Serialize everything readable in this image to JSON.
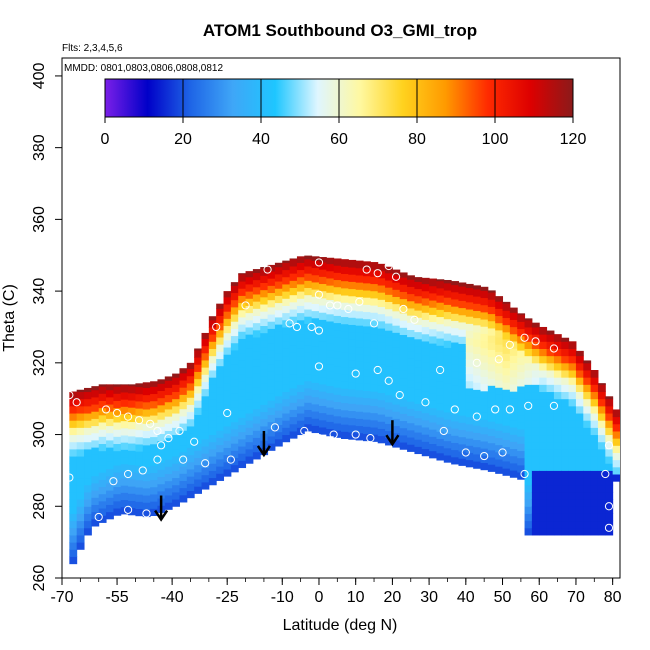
{
  "chart_data": {
    "type": "heatmap",
    "title": "ATOM1 Southbound O3_GMI_trop",
    "flights_note": "Flts: 2,3,4,5,6",
    "dates_note": "MMDD: 0801,0803,0806,0808,0812",
    "xlabel": "Latitude (deg N)",
    "ylabel": "Theta (C)",
    "xlim": [
      -70,
      82
    ],
    "ylim": [
      260,
      405
    ],
    "x_ticks": [
      -70,
      -55,
      -40,
      -25,
      -10,
      0,
      10,
      20,
      30,
      40,
      50,
      60,
      70,
      80
    ],
    "y_ticks": [
      260,
      280,
      300,
      320,
      340,
      360,
      380,
      400
    ],
    "colorbar": {
      "min": 0,
      "max": 120,
      "ticks": [
        0,
        20,
        40,
        60,
        80,
        100,
        120
      ],
      "colors": [
        "#7b1fe8",
        "#0000c8",
        "#1e64e6",
        "#3fa6f7",
        "#1ec6ff",
        "#dff6ff",
        "#fff8a0",
        "#ffd21e",
        "#ff9a00",
        "#ff2a00",
        "#dd0000",
        "#8b1a1a"
      ]
    },
    "profile_upper": [
      [
        -68,
        312
      ],
      [
        -60,
        314
      ],
      [
        -52,
        314
      ],
      [
        -45,
        315
      ],
      [
        -40,
        317
      ],
      [
        -36,
        320
      ],
      [
        -33,
        326
      ],
      [
        -30,
        333
      ],
      [
        -26,
        340
      ],
      [
        -22,
        345
      ],
      [
        -15,
        347
      ],
      [
        -5,
        350
      ],
      [
        5,
        349
      ],
      [
        15,
        348
      ],
      [
        25,
        344
      ],
      [
        35,
        343
      ],
      [
        45,
        341
      ],
      [
        50,
        337
      ],
      [
        55,
        333
      ],
      [
        60,
        330
      ],
      [
        68,
        326
      ],
      [
        74,
        318
      ],
      [
        80,
        307
      ]
    ],
    "profile_lower": [
      [
        -68,
        264
      ],
      [
        -63,
        274
      ],
      [
        -55,
        278
      ],
      [
        -47,
        277
      ],
      [
        -40,
        280
      ],
      [
        -30,
        286
      ],
      [
        -20,
        292
      ],
      [
        -10,
        298
      ],
      [
        -4,
        301
      ],
      [
        5,
        299
      ],
      [
        15,
        298
      ],
      [
        25,
        295
      ],
      [
        35,
        292
      ],
      [
        45,
        290
      ],
      [
        56,
        287
      ],
      [
        56,
        272
      ],
      [
        79,
        272
      ],
      [
        80,
        286
      ]
    ],
    "arrows": [
      [
        -43,
        283
      ],
      [
        -15,
        301
      ],
      [
        20,
        304
      ]
    ],
    "points": [
      [
        -68,
        311
      ],
      [
        -66,
        309
      ],
      [
        -58,
        307
      ],
      [
        -55,
        306
      ],
      [
        -52,
        305
      ],
      [
        -49,
        304
      ],
      [
        -46,
        303
      ],
      [
        -44,
        301
      ],
      [
        -43,
        297
      ],
      [
        -44,
        293
      ],
      [
        -48,
        290
      ],
      [
        -52,
        289
      ],
      [
        -56,
        287
      ],
      [
        -68,
        288
      ],
      [
        -60,
        277
      ],
      [
        -52,
        279
      ],
      [
        -47,
        278
      ],
      [
        -37,
        293
      ],
      [
        -31,
        292
      ],
      [
        -24,
        293
      ],
      [
        -20,
        336
      ],
      [
        -28,
        330
      ],
      [
        -14,
        346
      ],
      [
        -8,
        331
      ],
      [
        -6,
        330
      ],
      [
        -2,
        330
      ],
      [
        0,
        319
      ],
      [
        0,
        329
      ],
      [
        0,
        348
      ],
      [
        0,
        339
      ],
      [
        3,
        336
      ],
      [
        5,
        336
      ],
      [
        8,
        335
      ],
      [
        11,
        337
      ],
      [
        13,
        346
      ],
      [
        16,
        345
      ],
      [
        19,
        347
      ],
      [
        21,
        344
      ],
      [
        23,
        335
      ],
      [
        26,
        332
      ],
      [
        15,
        331
      ],
      [
        10,
        317
      ],
      [
        16,
        318
      ],
      [
        19,
        315
      ],
      [
        22,
        311
      ],
      [
        29,
        309
      ],
      [
        37,
        307
      ],
      [
        43,
        305
      ],
      [
        48,
        307
      ],
      [
        52,
        307
      ],
      [
        57,
        308
      ],
      [
        64,
        308
      ],
      [
        33,
        318
      ],
      [
        43,
        320
      ],
      [
        49,
        321
      ],
      [
        52,
        325
      ],
      [
        56,
        327
      ],
      [
        59,
        326
      ],
      [
        64,
        324
      ],
      [
        34,
        301
      ],
      [
        40,
        295
      ],
      [
        45,
        294
      ],
      [
        50,
        295
      ],
      [
        56,
        289
      ],
      [
        78,
        289
      ],
      [
        79,
        297
      ],
      [
        79,
        280
      ],
      [
        79,
        274
      ],
      [
        -12,
        302
      ],
      [
        -4,
        301
      ],
      [
        0,
        299
      ],
      [
        4,
        300
      ],
      [
        10,
        300
      ],
      [
        14,
        299
      ],
      [
        -25,
        306
      ],
      [
        -38,
        301
      ],
      [
        -41,
        299
      ],
      [
        -34,
        298
      ]
    ]
  }
}
